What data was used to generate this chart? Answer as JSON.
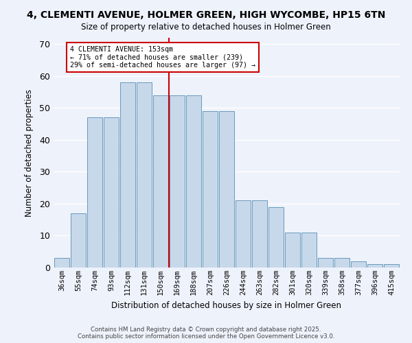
{
  "title": "4, CLEMENTI AVENUE, HOLMER GREEN, HIGH WYCOMBE, HP15 6TN",
  "subtitle": "Size of property relative to detached houses in Holmer Green",
  "xlabel": "Distribution of detached houses by size in Holmer Green",
  "ylabel": "Number of detached properties",
  "bar_color": "#c8d8eb",
  "bar_edge_color": "#6699bb",
  "categories": [
    "36sqm",
    "55sqm",
    "74sqm",
    "93sqm",
    "112sqm",
    "131sqm",
    "150sqm",
    "169sqm",
    "188sqm",
    "207sqm",
    "226sqm",
    "244sqm",
    "263sqm",
    "282sqm",
    "301sqm",
    "320sqm",
    "339sqm",
    "358sqm",
    "377sqm",
    "396sqm",
    "415sqm"
  ],
  "bar_heights": [
    3,
    17,
    47,
    47,
    58,
    58,
    54,
    54,
    54,
    49,
    49,
    21,
    21,
    19,
    11,
    11,
    3,
    3,
    2,
    1,
    1
  ],
  "ylim": [
    0,
    72
  ],
  "yticks": [
    0,
    10,
    20,
    30,
    40,
    50,
    60,
    70
  ],
  "property_line_x": 6.5,
  "annotation_text": "4 CLEMENTI AVENUE: 153sqm\n← 71% of detached houses are smaller (239)\n29% of semi-detached houses are larger (97) →",
  "annotation_box_color": "#ffffff",
  "annotation_border_color": "#cc0000",
  "line_color": "#cc0000",
  "footer_text": "Contains HM Land Registry data © Crown copyright and database right 2025.\nContains public sector information licensed under the Open Government Licence v3.0.",
  "background_color": "#eef2fb",
  "grid_color": "#ffffff"
}
